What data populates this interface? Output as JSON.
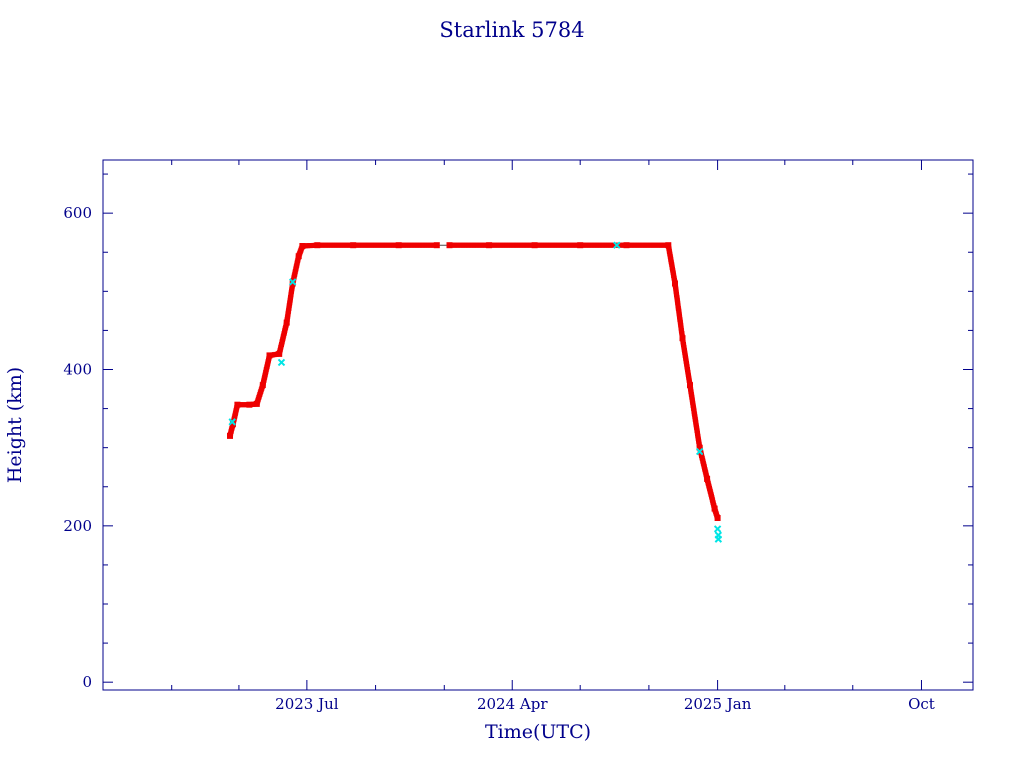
{
  "colors": {
    "axis": "#00008b",
    "orbit_line": "#4a4a4a",
    "points": "#ee0000",
    "highlight_points": "#00e5e5",
    "background": "#ffffff"
  },
  "chart_data": {
    "type": "scatter",
    "title": "Starlink 5784",
    "xlabel": "Time(UTC)",
    "ylabel": "Height (km)",
    "xlim": [
      "2022-10-01",
      "2025-12-09"
    ],
    "ylim": [
      -10,
      668
    ],
    "grid": false,
    "x_ticks": [
      {
        "date": "2023-07-01",
        "label": "2023 Jul"
      },
      {
        "date": "2024-04-01",
        "label": "2024 Apr"
      },
      {
        "date": "2025-01-01",
        "label": "2025 Jan"
      },
      {
        "date": "2025-10-01",
        "label": "Oct"
      }
    ],
    "x_minor_ticks": [
      "2023-01-01",
      "2023-04-01",
      "2023-10-01",
      "2024-01-01",
      "2024-07-01",
      "2024-10-01",
      "2025-04-01",
      "2025-07-01"
    ],
    "y_ticks": [
      0,
      200,
      400,
      600
    ],
    "y_minor_step": 50,
    "series": [
      {
        "name": "",
        "values": [
          {
            "x": "2023-03-20",
            "y": 315
          },
          {
            "x": "2023-03-24",
            "y": 330
          },
          {
            "x": "2023-03-30",
            "y": 355
          },
          {
            "x": "2023-04-15",
            "y": 355
          },
          {
            "x": "2023-04-25",
            "y": 356
          },
          {
            "x": "2023-05-03",
            "y": 380
          },
          {
            "x": "2023-05-12",
            "y": 418
          },
          {
            "x": "2023-05-25",
            "y": 420
          },
          {
            "x": "2023-06-04",
            "y": 460
          },
          {
            "x": "2023-06-12",
            "y": 510
          },
          {
            "x": "2023-06-20",
            "y": 545
          },
          {
            "x": "2023-06-25",
            "y": 558
          },
          {
            "x": "2023-07-15",
            "y": 559
          },
          {
            "x": "2023-09-01",
            "y": 559
          },
          {
            "x": "2023-11-01",
            "y": 559
          },
          {
            "x": "2023-12-22",
            "y": 559
          },
          {
            "x": "2024-01-08",
            "y": 559
          },
          {
            "x": "2024-03-01",
            "y": 559
          },
          {
            "x": "2024-05-01",
            "y": 559
          },
          {
            "x": "2024-07-01",
            "y": 559
          },
          {
            "x": "2024-09-01",
            "y": 559
          },
          {
            "x": "2024-10-27",
            "y": 559
          },
          {
            "x": "2024-11-05",
            "y": 510
          },
          {
            "x": "2024-11-15",
            "y": 440
          },
          {
            "x": "2024-11-25",
            "y": 380
          },
          {
            "x": "2024-12-08",
            "y": 300
          },
          {
            "x": "2024-12-18",
            "y": 260
          },
          {
            "x": "2024-12-28",
            "y": 222
          },
          {
            "x": "2025-01-01",
            "y": 210
          }
        ]
      },
      {
        "name": "",
        "values": [
          {
            "x": "2023-03-23",
            "y": 333
          },
          {
            "x": "2023-05-28",
            "y": 409
          },
          {
            "x": "2023-06-12",
            "y": 512
          },
          {
            "x": "2024-08-19",
            "y": 559
          },
          {
            "x": "2024-12-08",
            "y": 295
          },
          {
            "x": "2025-01-01",
            "y": 196
          },
          {
            "x": "2025-01-02",
            "y": 188
          },
          {
            "x": "2025-01-02",
            "y": 183
          }
        ]
      }
    ],
    "gap": {
      "start": "2023-12-22",
      "end": "2024-01-08"
    }
  }
}
